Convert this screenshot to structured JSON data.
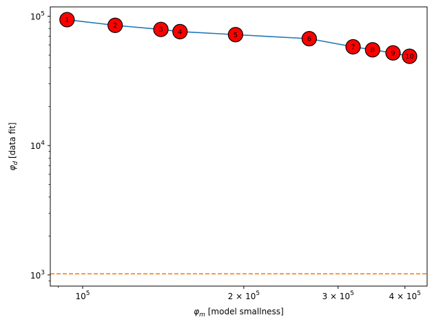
{
  "chart_data": {
    "type": "line",
    "xscale": "log",
    "yscale": "log",
    "xlim": [
      87000,
      440000
    ],
    "ylim": [
      820,
      118000
    ],
    "xlabel_sym": "φ",
    "xlabel_sub": "m",
    "xlabel_text": " [model smallness]",
    "ylabel_sym": "φ",
    "ylabel_sub": "d",
    "ylabel_text": " [data fit]",
    "x_major_ticks": [
      {
        "value": 100000,
        "base": "10",
        "exp": "5",
        "coef": ""
      },
      {
        "value": 200000,
        "base": "10",
        "exp": "5",
        "coef": "2 × "
      },
      {
        "value": 300000,
        "base": "10",
        "exp": "5",
        "coef": "3 × "
      },
      {
        "value": 400000,
        "base": "10",
        "exp": "5",
        "coef": "4 × "
      }
    ],
    "x_minor_ticks": [
      90000
    ],
    "y_major_ticks": [
      {
        "value": 1000,
        "base": "10",
        "exp": "3"
      },
      {
        "value": 10000,
        "base": "10",
        "exp": "4"
      },
      {
        "value": 100000,
        "base": "10",
        "exp": "5"
      }
    ],
    "series": [
      {
        "color": "#1f77b4",
        "x": [
          93500,
          115000,
          140000,
          152000,
          193000,
          265000,
          320000,
          348000,
          380000,
          408000
        ],
        "y": [
          94000,
          85000,
          79000,
          76000,
          72000,
          67000,
          58000,
          55000,
          52000,
          49000
        ],
        "labels": [
          "1",
          "2",
          "3",
          "4",
          "5",
          "6",
          "7",
          "8",
          "9",
          "10"
        ]
      }
    ],
    "target_line": {
      "y": 1020,
      "color": "#ff7f0e",
      "style": "dashed"
    },
    "marker_color": "#ff0000",
    "marker_edge": "#000000",
    "grid": false
  }
}
